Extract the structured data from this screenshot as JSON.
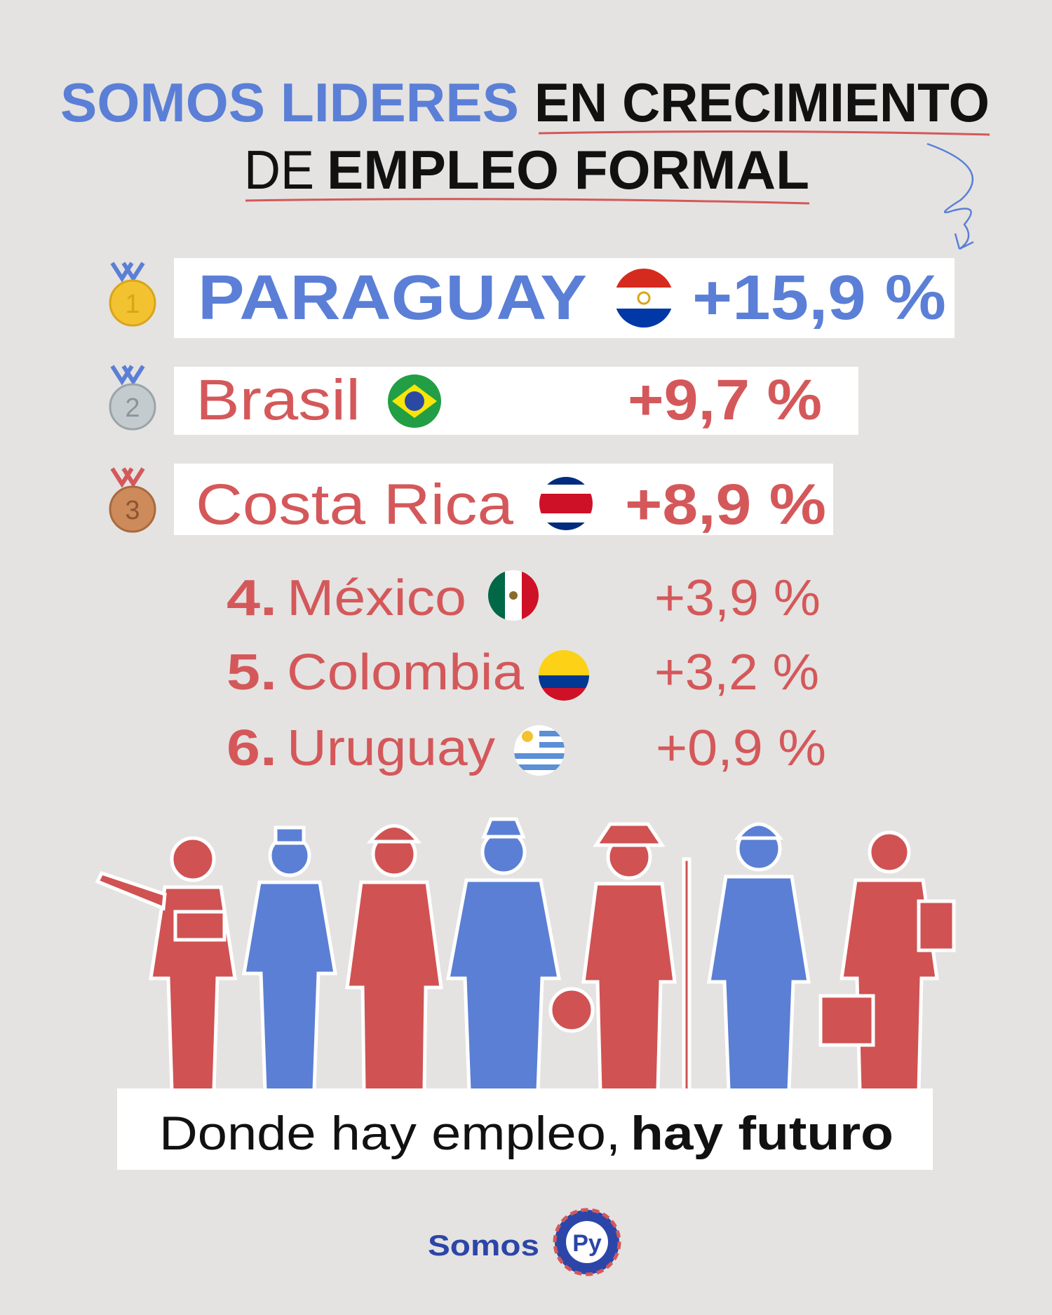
{
  "header": {
    "title_highlight": "SOMOS LIDERES",
    "title_rest": "EN CRECIMIENTO",
    "title_line2_start": "DE",
    "title_line2_emphasis": "EMPLEO FORMAL"
  },
  "podium": [
    {
      "medal": "1",
      "country": "PARAGUAY",
      "growth": "+15,9 %"
    },
    {
      "medal": "2",
      "country": "Brasil",
      "growth": "+9,7 %"
    },
    {
      "medal": "3",
      "country": "Costa Rica",
      "growth": "+8,9 %"
    }
  ],
  "others": [
    {
      "rank": "4.",
      "country": "México",
      "growth": "+3,9 %"
    },
    {
      "rank": "5.",
      "country": "Colombia",
      "growth": "+3,2 %"
    },
    {
      "rank": "6.",
      "country": "Uruguay",
      "growth": "+0,9 %"
    }
  ],
  "tagline": {
    "regular": "Donde hay empleo,",
    "bold": "hay futuro"
  },
  "footer": {
    "brand": "Somos",
    "logo": "Py"
  }
}
